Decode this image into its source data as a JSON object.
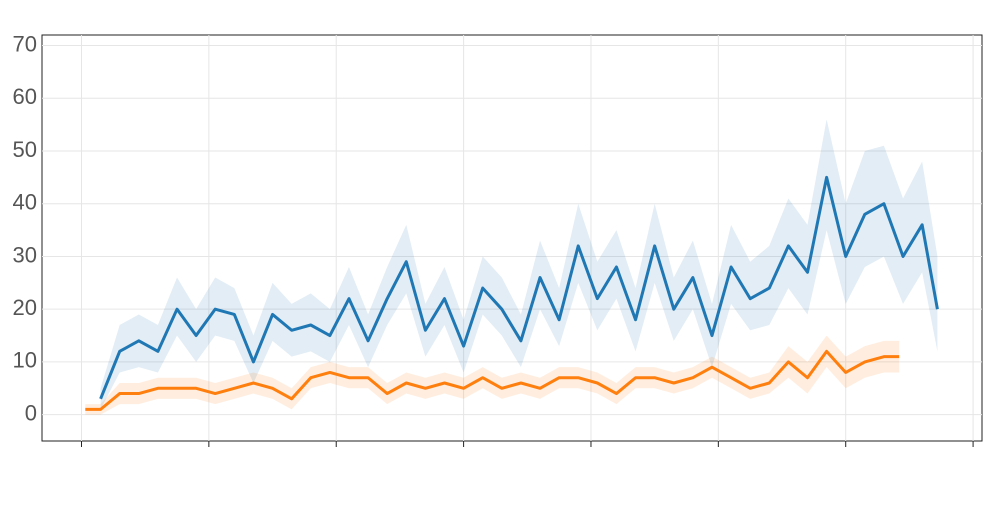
{
  "chart_data": {
    "type": "line",
    "xlim": [
      -31,
      707
    ],
    "xticks": [
      0,
      100,
      200,
      300,
      400,
      500,
      600,
      700
    ],
    "ylim": [
      -5,
      72
    ],
    "yticks": [
      0,
      10,
      20,
      30,
      40,
      50,
      60,
      70
    ],
    "grid": true,
    "series": [
      {
        "color": "#1f77b4",
        "x": [
          15,
          30,
          45,
          60,
          75,
          90,
          105,
          120,
          135,
          150,
          165,
          180,
          195,
          210,
          225,
          240,
          255,
          270,
          285,
          300,
          315,
          330,
          345,
          360,
          375,
          390,
          405,
          420,
          435,
          450,
          465,
          480,
          495,
          510,
          525,
          540,
          555,
          570,
          585,
          600,
          615,
          630,
          645,
          660,
          672
        ],
        "values": [
          3,
          12,
          14,
          12,
          20,
          15,
          20,
          19,
          10,
          19,
          16,
          17,
          15,
          22,
          14,
          22,
          29,
          16,
          22,
          13,
          24,
          20,
          14,
          26,
          18,
          32,
          22,
          28,
          18,
          32,
          20,
          26,
          15,
          28,
          22,
          24,
          32,
          27,
          45,
          30,
          38,
          40,
          30,
          36,
          20
        ],
        "lower": [
          1,
          8,
          9,
          8,
          15,
          10,
          15,
          14,
          6,
          14,
          11,
          12,
          10,
          17,
          9,
          17,
          23,
          11,
          17,
          8,
          19,
          15,
          9,
          20,
          13,
          25,
          16,
          22,
          12,
          25,
          14,
          20,
          9,
          21,
          16,
          17,
          24,
          19,
          35,
          21,
          28,
          30,
          21,
          27,
          12
        ],
        "upper": [
          5,
          17,
          19,
          17,
          26,
          20,
          26,
          24,
          15,
          25,
          21,
          23,
          20,
          28,
          19,
          28,
          36,
          21,
          28,
          18,
          30,
          26,
          19,
          33,
          24,
          40,
          29,
          35,
          24,
          40,
          26,
          33,
          21,
          36,
          29,
          32,
          41,
          36,
          56,
          40,
          50,
          51,
          41,
          48,
          30
        ]
      },
      {
        "color": "#ff7f0e",
        "x": [
          3,
          15,
          30,
          45,
          60,
          75,
          90,
          105,
          120,
          135,
          150,
          165,
          180,
          195,
          210,
          225,
          240,
          255,
          270,
          285,
          300,
          315,
          330,
          345,
          360,
          375,
          390,
          405,
          420,
          435,
          450,
          465,
          480,
          495,
          510,
          525,
          540,
          555,
          570,
          585,
          600,
          615,
          630,
          642
        ],
        "values": [
          1,
          1,
          4,
          4,
          5,
          5,
          5,
          4,
          5,
          6,
          5,
          3,
          7,
          8,
          7,
          7,
          4,
          6,
          5,
          6,
          5,
          7,
          5,
          6,
          5,
          7,
          7,
          6,
          4,
          7,
          7,
          6,
          7,
          9,
          7,
          5,
          6,
          10,
          7,
          12,
          8,
          10,
          11,
          11
        ],
        "lower": [
          0,
          0,
          2,
          2,
          3,
          3,
          3,
          2,
          3,
          4,
          3,
          1,
          5,
          6,
          5,
          5,
          2,
          4,
          3,
          4,
          3,
          5,
          3,
          4,
          3,
          5,
          5,
          4,
          2,
          5,
          5,
          4,
          5,
          7,
          5,
          3,
          4,
          7,
          4,
          9,
          5,
          7,
          8,
          8
        ],
        "upper": [
          2,
          2,
          6,
          6,
          7,
          7,
          7,
          6,
          7,
          8,
          7,
          5,
          9,
          10,
          9,
          9,
          6,
          8,
          7,
          8,
          7,
          9,
          7,
          8,
          7,
          9,
          9,
          8,
          6,
          9,
          9,
          8,
          9,
          11,
          9,
          7,
          8,
          13,
          10,
          15,
          11,
          13,
          14,
          14
        ]
      }
    ]
  }
}
